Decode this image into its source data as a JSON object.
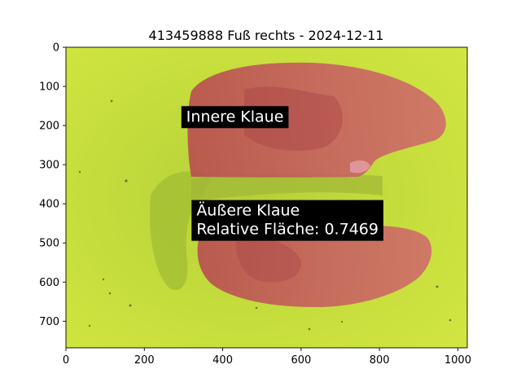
{
  "chart_data": {
    "type": "image",
    "title": "413459888 Fuß rechts - 2024-12-11",
    "xlim": [
      0,
      1024
    ],
    "ylim": [
      768,
      0
    ],
    "x_ticks": [
      0,
      200,
      400,
      600,
      800,
      1000
    ],
    "y_ticks": [
      0,
      100,
      200,
      300,
      400,
      500,
      600,
      700
    ],
    "x_tick_labels": [
      "0",
      "200",
      "400",
      "600",
      "800",
      "1000"
    ],
    "y_tick_labels": [
      "0",
      "100",
      "200",
      "300",
      "400",
      "500",
      "600",
      "700"
    ],
    "annotations": [
      {
        "lines": [
          "Innere Klaue"
        ],
        "x": 307,
        "y": 190
      },
      {
        "lines": [
          "Äußere Klaue",
          "Relative Fläche: 0.7469"
        ],
        "x": 333,
        "y": 430
      }
    ],
    "colors": {
      "background_green": "#c4dc3a",
      "mask_red": "#c0555a",
      "annotation_box": "#000000"
    }
  }
}
